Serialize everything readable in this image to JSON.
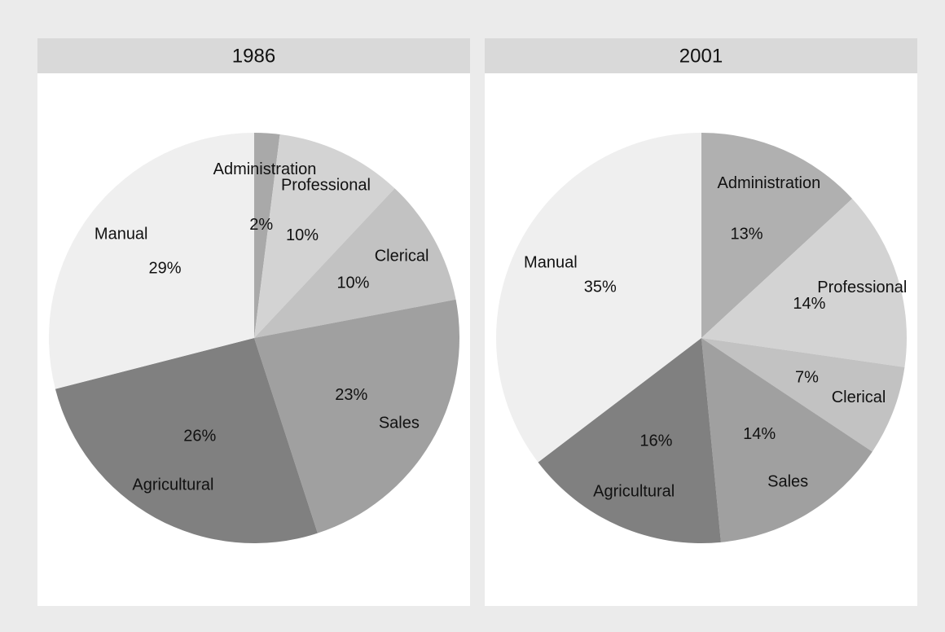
{
  "chart_data": [
    {
      "type": "pie",
      "title": "1986",
      "categories": [
        "Administration",
        "Professional",
        "Clerical",
        "Sales",
        "Agricultural",
        "Manual"
      ],
      "values": [
        2,
        10,
        10,
        23,
        26,
        29
      ],
      "value_labels": [
        "2%",
        "10%",
        "10%",
        "23%",
        "26%",
        "29%"
      ],
      "colors": [
        "#a9a9a9",
        "#d3d3d3",
        "#c2c2c2",
        "#a0a0a0",
        "#808080",
        "#efefef"
      ]
    },
    {
      "type": "pie",
      "title": "2001",
      "categories": [
        "Administration",
        "Professional",
        "Clerical",
        "Sales",
        "Agricultural",
        "Manual"
      ],
      "values": [
        13,
        14,
        7,
        14,
        16,
        35
      ],
      "value_labels": [
        "13%",
        "14%",
        "7%",
        "14%",
        "16%",
        "35%"
      ],
      "colors": [
        "#b0b0b0",
        "#d3d3d3",
        "#c2c2c2",
        "#a0a0a0",
        "#808080",
        "#efefef"
      ]
    }
  ]
}
